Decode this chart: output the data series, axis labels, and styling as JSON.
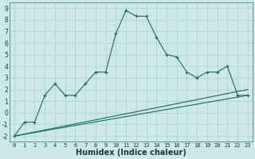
{
  "xlabel": "Humidex (Indice chaleur)",
  "background_color": "#cce8e8",
  "grid_color": "#aacfcf",
  "line_color": "#1a6b5a",
  "xlim": [
    -0.5,
    23.5
  ],
  "ylim": [
    -2.5,
    9.5
  ],
  "xtick_labels": [
    "0",
    "1",
    "2",
    "3",
    "4",
    "5",
    "6",
    "7",
    "8",
    "9",
    "10",
    "11",
    "12",
    "13",
    "14",
    "15",
    "16",
    "17",
    "18",
    "19",
    "20",
    "21",
    "22",
    "23"
  ],
  "xtick_vals": [
    0,
    1,
    2,
    3,
    4,
    5,
    6,
    7,
    8,
    9,
    10,
    11,
    12,
    13,
    14,
    15,
    16,
    17,
    18,
    19,
    20,
    21,
    22,
    23
  ],
  "ytick_vals": [
    -2,
    -1,
    0,
    1,
    2,
    3,
    4,
    5,
    6,
    7,
    8,
    9
  ],
  "main_x": [
    0,
    1,
    2,
    3,
    4,
    5,
    6,
    7,
    8,
    9,
    10,
    11,
    12,
    13,
    14,
    15,
    16,
    17,
    18,
    19,
    20,
    21,
    22,
    23
  ],
  "main_y": [
    -2,
    -0.8,
    -0.8,
    1.5,
    2.5,
    1.5,
    1.5,
    2.5,
    3.5,
    3.5,
    6.8,
    8.8,
    8.3,
    8.3,
    6.5,
    5.0,
    4.8,
    3.5,
    3.0,
    3.5,
    3.5,
    4.0,
    1.5,
    1.5
  ],
  "line2_x": [
    0,
    23
  ],
  "line2_y": [
    -2,
    1.5
  ],
  "line3_x": [
    0,
    23
  ],
  "line3_y": [
    -2,
    2.0
  ],
  "xlabel_fontsize": 7,
  "tick_fontsize": 5
}
